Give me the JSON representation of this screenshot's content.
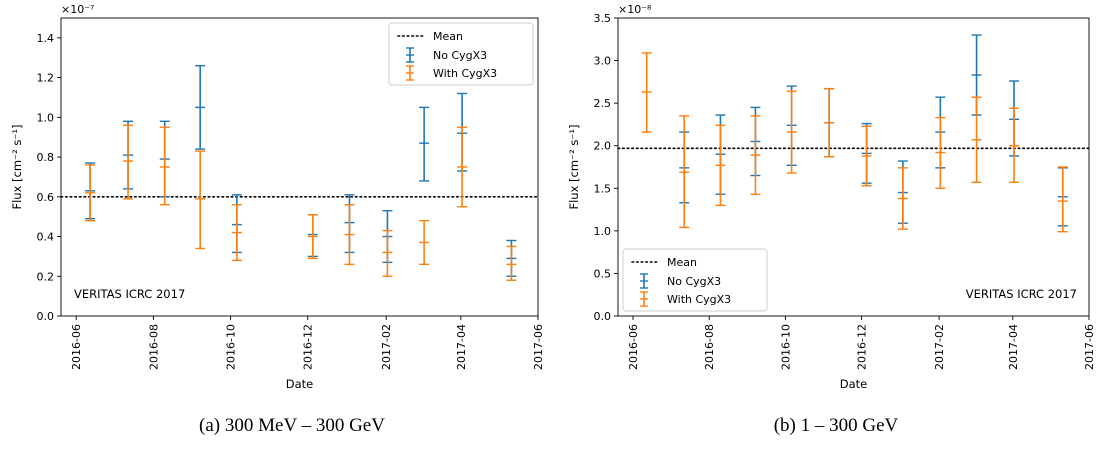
{
  "colors": {
    "no_cygx3": "#1f77b4",
    "with_cygx3": "#ff7f0e",
    "mean_line": "#000000"
  },
  "chart_data": [
    {
      "type": "scatter",
      "panel": "a",
      "caption": "(a) 300 MeV – 300 GeV",
      "xlabel": "Date",
      "ylabel": "Flux [cm⁻² s⁻¹]",
      "scale_label": "×10⁻⁷",
      "annotation": "VERITAS ICRC 2017",
      "legend_position": "top-right",
      "grid": false,
      "xlim": [
        "2016-05-20",
        "2017-06-01"
      ],
      "ylim": [
        0,
        1.5
      ],
      "x_ticks": [
        "2016-06",
        "2016-08",
        "2016-10",
        "2016-12",
        "2017-02",
        "2017-04",
        "2017-06"
      ],
      "y_ticks": [
        "0.0",
        "0.2",
        "0.4",
        "0.6",
        "0.8",
        "1.0",
        "1.2",
        "1.4"
      ],
      "mean": {
        "name": "Mean",
        "value": 0.6
      },
      "series": [
        {
          "name": "No CygX3",
          "color": "#1f77b4",
          "points": [
            {
              "x": "2016-06-12",
              "y": 0.63,
              "yerr": [
                0.49,
                0.77
              ]
            },
            {
              "x": "2016-07-12",
              "y": 0.81,
              "yerr": [
                0.64,
                0.98
              ]
            },
            {
              "x": "2016-08-10",
              "y": 0.79,
              "yerr": [
                0.6,
                0.98
              ]
            },
            {
              "x": "2016-09-07",
              "y": 1.05,
              "yerr": [
                0.84,
                1.26
              ]
            },
            {
              "x": "2016-10-06",
              "y": 0.46,
              "yerr": [
                0.32,
                0.61
              ]
            },
            {
              "x": "2016-12-05",
              "y": 0.41,
              "yerr": [
                0.3,
                0.51
              ]
            },
            {
              "x": "2017-01-03",
              "y": 0.47,
              "yerr": [
                0.32,
                0.61
              ]
            },
            {
              "x": "2017-02-02",
              "y": 0.4,
              "yerr": [
                0.27,
                0.53
              ]
            },
            {
              "x": "2017-03-03",
              "y": 0.87,
              "yerr": [
                0.68,
                1.05
              ]
            },
            {
              "x": "2017-04-02",
              "y": 0.92,
              "yerr": [
                0.73,
                1.12
              ]
            },
            {
              "x": "2017-05-11",
              "y": 0.29,
              "yerr": [
                0.2,
                0.38
              ]
            }
          ]
        },
        {
          "name": "With CygX3",
          "color": "#ff7f0e",
          "points": [
            {
              "x": "2016-06-12",
              "y": 0.62,
              "yerr": [
                0.48,
                0.76
              ]
            },
            {
              "x": "2016-07-12",
              "y": 0.78,
              "yerr": [
                0.59,
                0.96
              ]
            },
            {
              "x": "2016-08-10",
              "y": 0.75,
              "yerr": [
                0.56,
                0.95
              ]
            },
            {
              "x": "2016-09-07",
              "y": 0.59,
              "yerr": [
                0.34,
                0.83
              ]
            },
            {
              "x": "2016-10-06",
              "y": 0.42,
              "yerr": [
                0.28,
                0.56
              ]
            },
            {
              "x": "2016-12-05",
              "y": 0.4,
              "yerr": [
                0.29,
                0.51
              ]
            },
            {
              "x": "2017-01-03",
              "y": 0.41,
              "yerr": [
                0.26,
                0.56
              ]
            },
            {
              "x": "2017-02-02",
              "y": 0.32,
              "yerr": [
                0.2,
                0.43
              ]
            },
            {
              "x": "2017-03-03",
              "y": 0.37,
              "yerr": [
                0.26,
                0.48
              ]
            },
            {
              "x": "2017-04-02",
              "y": 0.75,
              "yerr": [
                0.55,
                0.95
              ]
            },
            {
              "x": "2017-05-11",
              "y": 0.26,
              "yerr": [
                0.18,
                0.35
              ]
            }
          ]
        }
      ]
    },
    {
      "type": "scatter",
      "panel": "b",
      "caption": "(b) 1 – 300 GeV",
      "xlabel": "Date",
      "ylabel": "Flux [cm⁻² s⁻¹]",
      "scale_label": "×10⁻⁸",
      "annotation": "VERITAS ICRC 2017",
      "legend_position": "bottom-left",
      "grid": false,
      "xlim": [
        "2016-05-20",
        "2017-06-01"
      ],
      "ylim": [
        0,
        3.5
      ],
      "x_ticks": [
        "2016-06",
        "2016-08",
        "2016-10",
        "2016-12",
        "2017-02",
        "2017-04",
        "2017-06"
      ],
      "y_ticks": [
        "0.0",
        "0.5",
        "1.0",
        "1.5",
        "2.0",
        "2.5",
        "3.0",
        "3.5"
      ],
      "mean": {
        "name": "Mean",
        "value": 1.97
      },
      "series": [
        {
          "name": "No CygX3",
          "color": "#1f77b4",
          "points": [
            {
              "x": "2016-07-12",
              "y": 1.74,
              "yerr": [
                1.33,
                2.16
              ]
            },
            {
              "x": "2016-08-10",
              "y": 1.9,
              "yerr": [
                1.43,
                2.36
              ]
            },
            {
              "x": "2016-09-07",
              "y": 2.05,
              "yerr": [
                1.65,
                2.45
              ]
            },
            {
              "x": "2016-10-06",
              "y": 2.24,
              "yerr": [
                1.77,
                2.7
              ]
            },
            {
              "x": "2016-11-05",
              "y": 2.27,
              "yerr": [
                1.87,
                2.67
              ]
            },
            {
              "x": "2016-12-05",
              "y": 1.91,
              "yerr": [
                1.56,
                2.26
              ]
            },
            {
              "x": "2017-01-03",
              "y": 1.45,
              "yerr": [
                1.09,
                1.82
              ]
            },
            {
              "x": "2017-02-02",
              "y": 2.16,
              "yerr": [
                1.74,
                2.57
              ]
            },
            {
              "x": "2017-03-03",
              "y": 2.83,
              "yerr": [
                2.36,
                3.3
              ]
            },
            {
              "x": "2017-04-02",
              "y": 2.31,
              "yerr": [
                1.88,
                2.76
              ]
            },
            {
              "x": "2017-05-11",
              "y": 1.4,
              "yerr": [
                1.06,
                1.74
              ]
            }
          ]
        },
        {
          "name": "With CygX3",
          "color": "#ff7f0e",
          "points": [
            {
              "x": "2016-06-12",
              "y": 2.63,
              "yerr": [
                2.16,
                3.09
              ]
            },
            {
              "x": "2016-07-12",
              "y": 1.69,
              "yerr": [
                1.04,
                2.35
              ]
            },
            {
              "x": "2016-08-10",
              "y": 1.77,
              "yerr": [
                1.3,
                2.24
              ]
            },
            {
              "x": "2016-09-07",
              "y": 1.89,
              "yerr": [
                1.43,
                2.35
              ]
            },
            {
              "x": "2016-10-06",
              "y": 2.16,
              "yerr": [
                1.68,
                2.64
              ]
            },
            {
              "x": "2016-11-05",
              "y": 2.27,
              "yerr": [
                1.87,
                2.67
              ]
            },
            {
              "x": "2016-12-05",
              "y": 1.88,
              "yerr": [
                1.53,
                2.23
              ]
            },
            {
              "x": "2017-01-03",
              "y": 1.38,
              "yerr": [
                1.02,
                1.74
              ]
            },
            {
              "x": "2017-02-02",
              "y": 1.92,
              "yerr": [
                1.5,
                2.33
              ]
            },
            {
              "x": "2017-03-03",
              "y": 2.07,
              "yerr": [
                1.57,
                2.57
              ]
            },
            {
              "x": "2017-04-02",
              "y": 2.0,
              "yerr": [
                1.57,
                2.44
              ]
            },
            {
              "x": "2017-05-11",
              "y": 1.35,
              "yerr": [
                0.99,
                1.75
              ]
            }
          ]
        }
      ]
    }
  ]
}
